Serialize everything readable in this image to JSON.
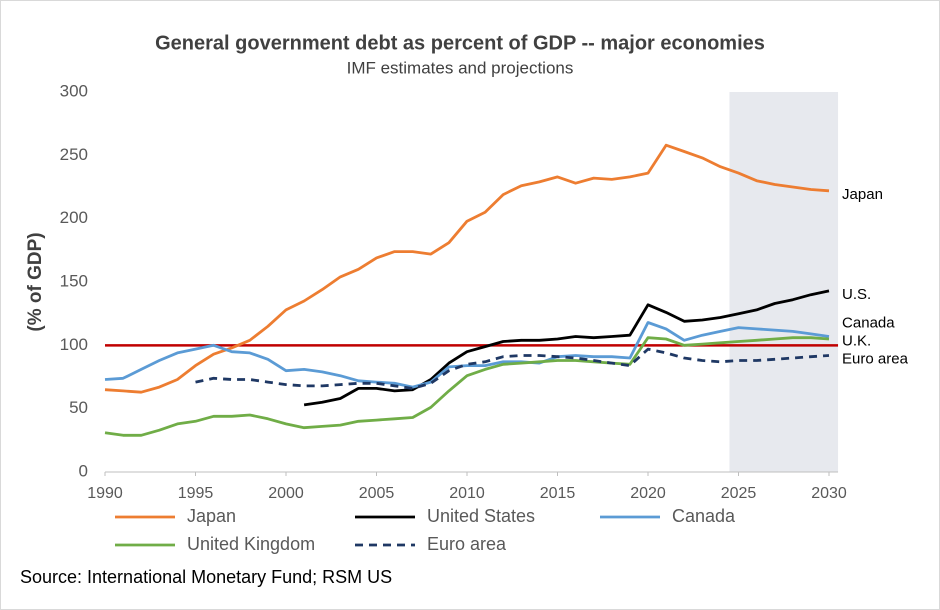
{
  "chart_data": {
    "type": "line",
    "title": "General government debt as percent of GDP -- major economies",
    "subtitle": "IMF estimates and projections",
    "y_label": "(% of GDP)",
    "source": "Source: International Monetary Fund; RSM US",
    "x": [
      1990,
      1991,
      1992,
      1993,
      1994,
      1995,
      1996,
      1997,
      1998,
      1999,
      2000,
      2001,
      2002,
      2003,
      2004,
      2005,
      2006,
      2007,
      2008,
      2009,
      2010,
      2011,
      2012,
      2013,
      2014,
      2015,
      2016,
      2017,
      2018,
      2019,
      2020,
      2021,
      2022,
      2023,
      2024,
      2025,
      2026,
      2027,
      2028,
      2029,
      2030
    ],
    "series": [
      {
        "name": "Japan",
        "end_label": "Japan",
        "color": "#ed7d31",
        "dashed": false,
        "values": [
          65,
          64,
          63,
          67,
          73,
          84,
          93,
          98,
          104,
          115,
          128,
          135,
          144,
          154,
          160,
          169,
          174,
          174,
          172,
          181,
          198,
          205,
          219,
          226,
          229,
          233,
          228,
          232,
          231,
          233,
          236,
          258,
          253,
          248,
          241,
          236,
          230,
          227,
          225,
          223,
          222
        ]
      },
      {
        "name": "United States",
        "end_label": "U.S.",
        "color": "#000000",
        "dashed": false,
        "values": [
          null,
          null,
          null,
          null,
          null,
          null,
          null,
          null,
          null,
          null,
          null,
          53,
          55,
          58,
          66,
          66,
          64,
          65,
          73,
          86,
          95,
          99,
          103,
          104,
          104,
          105,
          107,
          106,
          107,
          108,
          132,
          126,
          119,
          120,
          122,
          125,
          128,
          133,
          136,
          140,
          143
        ]
      },
      {
        "name": "Canada",
        "end_label": "Canada",
        "color": "#5b9bd5",
        "dashed": false,
        "values": [
          73,
          74,
          81,
          88,
          94,
          97,
          100,
          95,
          94,
          89,
          80,
          81,
          79,
          76,
          72,
          71,
          70,
          67,
          71,
          83,
          84,
          84,
          87,
          87,
          86,
          91,
          92,
          91,
          91,
          90,
          118,
          113,
          104,
          108,
          111,
          114,
          113,
          112,
          111,
          109,
          107
        ]
      },
      {
        "name": "United Kingdom",
        "end_label": "U.K.",
        "color": "#70ad47",
        "dashed": false,
        "values": [
          31,
          29,
          29,
          33,
          38,
          40,
          44,
          44,
          45,
          42,
          38,
          35,
          36,
          37,
          40,
          41,
          42,
          43,
          51,
          64,
          76,
          81,
          85,
          86,
          87,
          88,
          88,
          87,
          86,
          85,
          106,
          105,
          100,
          101,
          102,
          103,
          104,
          105,
          106,
          106,
          105
        ]
      },
      {
        "name": "Euro area",
        "end_label": "Euro area",
        "color": "#1f3864",
        "dashed": true,
        "values": [
          null,
          null,
          null,
          null,
          null,
          71,
          74,
          73,
          73,
          71,
          69,
          68,
          68,
          69,
          70,
          70,
          68,
          66,
          70,
          80,
          85,
          87,
          91,
          92,
          92,
          91,
          90,
          88,
          86,
          84,
          97,
          94,
          90,
          88,
          87,
          88,
          88,
          89,
          90,
          91,
          92
        ]
      }
    ],
    "xlim": [
      1990,
      2030.5
    ],
    "xticks": [
      1990,
      1995,
      2000,
      2005,
      2010,
      2015,
      2020,
      2025,
      2030
    ],
    "ylim": [
      0,
      300
    ],
    "yticks": [
      0,
      50,
      100,
      150,
      200,
      250,
      300
    ],
    "reference_line": {
      "value": 100,
      "color": "#c00000"
    },
    "shaded_xrange": [
      2024.5,
      2030.5
    ],
    "shade_color": "#e7e9ee",
    "legend": "bottom",
    "grid": false
  }
}
